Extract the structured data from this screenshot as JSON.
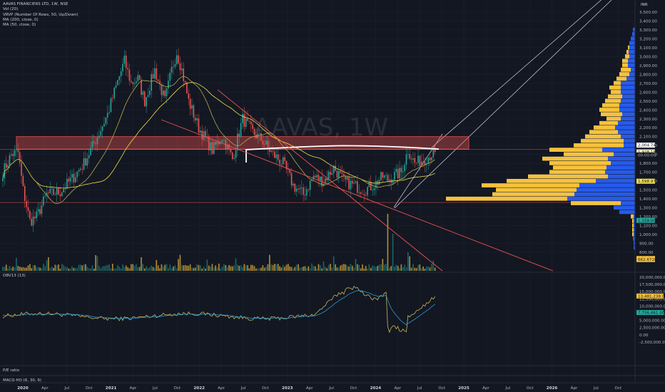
{
  "legend": {
    "symbol": "AAVAS FINANCIERS LTD, 1W, NSE",
    "indicators": [
      "Vol (20)",
      "VRVP (Number Of Rows, 50, Up/Down)",
      "MA (200, close, 0)",
      "MA (50, close, 0)"
    ]
  },
  "watermark": "AAVAS, 1W",
  "currency": "INR",
  "price_axis": {
    "ticks": [
      "3,500.00",
      "3,400.00",
      "3,300.00",
      "3,200.00",
      "3,100.00",
      "3,000.00",
      "2,900.00",
      "2,800.00",
      "2,700.00",
      "2,600.00",
      "2,500.00",
      "2,400.00",
      "2,300.00",
      "2,200.00",
      "2,100.00",
      "2,000.00",
      "1,900.00",
      "1,800.00",
      "1,700.00",
      "1,600.00",
      "1,500.00",
      "1,400.00",
      "1,300.00",
      "1,200.00",
      "1,100.00",
      "1,000.00",
      "900.00",
      "800.00"
    ],
    "tags": [
      {
        "text": "2,004.74",
        "bg": "#ffffff",
        "fg": "#131722",
        "value": 2004.74
      },
      {
        "text": "1,928.15",
        "bg": "#fff9c4",
        "fg": "#131722",
        "value": 1928.15
      },
      {
        "text": "00:00:00",
        "bg": "#131722",
        "fg": "#b2b5be",
        "value": 1895
      },
      {
        "text": "1,598.97",
        "bg": "#f0e04c",
        "fg": "#131722",
        "value": 1598.97
      },
      {
        "text": "1,158.00",
        "bg": "#26a69a",
        "fg": "#131722",
        "value": 1158
      },
      {
        "text": "1.394M",
        "bg": "#f7c23a",
        "fg": "#131722",
        "value": 730
      },
      {
        "text": "662.672K",
        "bg": "#f7c23a",
        "fg": "#131722",
        "value": 718
      }
    ]
  },
  "obv": {
    "label": "OBV13 (13)",
    "ticks": [
      "20,000,000.00",
      "17,500,000.00",
      "15,000,000.00",
      "12,500,000.00",
      "10,000,000.00",
      "7,500,000.00",
      "5,000,000.00",
      "2,500,000.00",
      "0.00",
      "-2,500,000.00"
    ],
    "tags": [
      {
        "text": "13,481,238.00",
        "bg": "#f7c23a",
        "fg": "#131722",
        "value": 13481238
      },
      {
        "text": "7,756,461.00",
        "bg": "#26a69a",
        "fg": "#131722",
        "value": 7756461
      }
    ]
  },
  "pe_pane": {
    "label": "P/E ratio"
  },
  "macd_pane": {
    "label": "MACD-HO (6, 30, 9)"
  },
  "time_axis": {
    "labels": [
      {
        "text": "2020",
        "year": true
      },
      {
        "text": "Apr",
        "year": false
      },
      {
        "text": "Jul",
        "year": false
      },
      {
        "text": "Oct",
        "year": false
      },
      {
        "text": "2021",
        "year": true
      },
      {
        "text": "Apr",
        "year": false
      },
      {
        "text": "Jul",
        "year": false
      },
      {
        "text": "Oct",
        "year": false
      },
      {
        "text": "2022",
        "year": true
      },
      {
        "text": "Apr",
        "year": false
      },
      {
        "text": "Jul",
        "year": false
      },
      {
        "text": "Oct",
        "year": false
      },
      {
        "text": "2023",
        "year": true
      },
      {
        "text": "Apr",
        "year": false
      },
      {
        "text": "Jul",
        "year": false
      },
      {
        "text": "Oct",
        "year": false
      },
      {
        "text": "2024",
        "year": true
      },
      {
        "text": "Apr",
        "year": false
      },
      {
        "text": "Jul",
        "year": false
      },
      {
        "text": "Oct",
        "year": false
      },
      {
        "text": "2025",
        "year": true
      },
      {
        "text": "Apr",
        "year": false
      },
      {
        "text": "Jul",
        "year": false
      },
      {
        "text": "Oct",
        "year": false
      },
      {
        "text": "2026",
        "year": true
      },
      {
        "text": "Apr",
        "year": false
      },
      {
        "text": "Jul",
        "year": false
      },
      {
        "text": "Oct",
        "year": false
      }
    ]
  },
  "colors": {
    "background": "#131722",
    "up": "#26a69a",
    "down": "#ef5350",
    "ma50": "#f0e04c",
    "ma200": "#b7a94a",
    "vrvp_up": "#2962ff",
    "vrvp_down": "#f7c23a",
    "zone": "#ef5350",
    "trend": "#ef5350",
    "channel": "#d1d4dc"
  },
  "chart_data": {
    "type": "candlestick",
    "interval": "1W",
    "price_range": [
      800,
      3500
    ],
    "anchors": [
      [
        0,
        1700
      ],
      [
        5,
        1900
      ],
      [
        9,
        1920
      ],
      [
        12,
        1500
      ],
      [
        16,
        1150
      ],
      [
        20,
        1200
      ],
      [
        26,
        1450
      ],
      [
        34,
        1480
      ],
      [
        42,
        1650
      ],
      [
        48,
        1800
      ],
      [
        56,
        2100
      ],
      [
        62,
        2350
      ],
      [
        66,
        2600
      ],
      [
        72,
        2950
      ],
      [
        76,
        2700
      ],
      [
        80,
        2750
      ],
      [
        84,
        2500
      ],
      [
        90,
        2850
      ],
      [
        96,
        2500
      ],
      [
        100,
        2850
      ],
      [
        103,
        3050
      ],
      [
        106,
        2850
      ],
      [
        110,
        2500
      ],
      [
        116,
        2200
      ],
      [
        124,
        1950
      ],
      [
        130,
        2100
      ],
      [
        136,
        1850
      ],
      [
        142,
        2300
      ],
      [
        148,
        2150
      ],
      [
        154,
        2050
      ],
      [
        160,
        1900
      ],
      [
        166,
        1800
      ],
      [
        172,
        1550
      ],
      [
        178,
        1450
      ],
      [
        184,
        1650
      ],
      [
        190,
        1600
      ],
      [
        196,
        1750
      ],
      [
        202,
        1600
      ],
      [
        208,
        1550
      ],
      [
        214,
        1500
      ],
      [
        220,
        1560
      ],
      [
        225,
        1650
      ],
      [
        228,
        1620
      ],
      [
        236,
        1700
      ],
      [
        240,
        1950
      ],
      [
        244,
        1800
      ],
      [
        250,
        1850
      ],
      [
        256,
        1930
      ]
    ]
  }
}
